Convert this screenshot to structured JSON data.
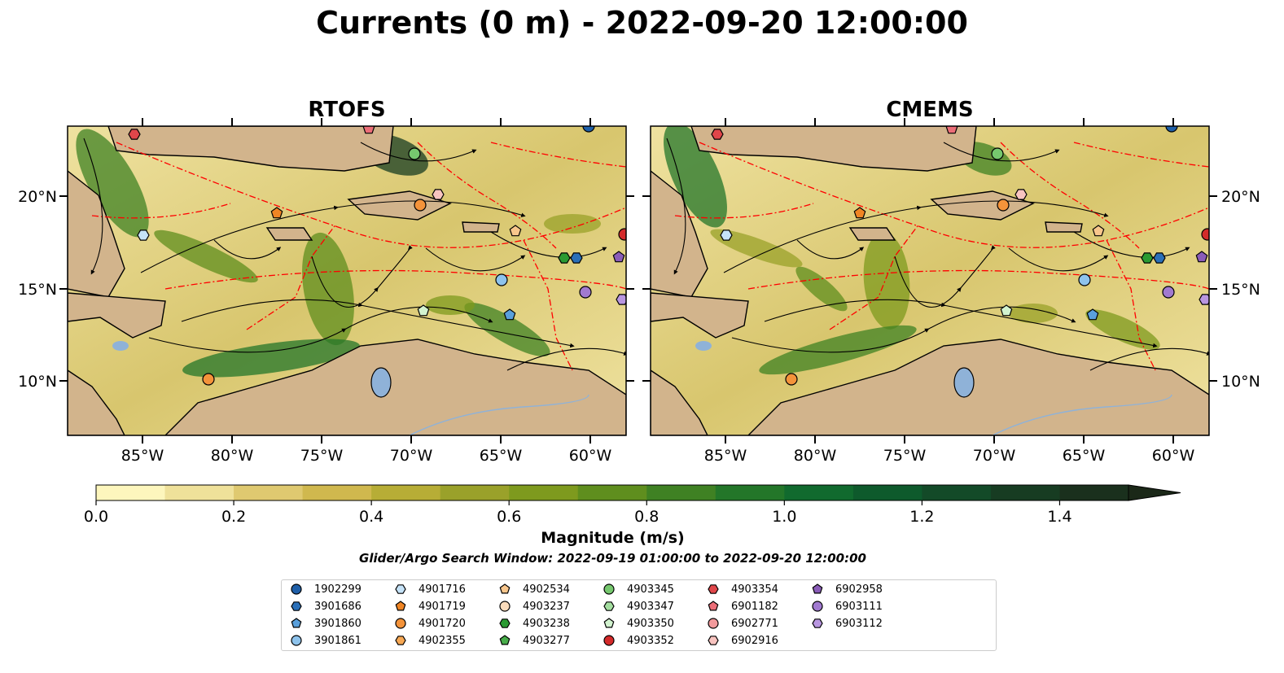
{
  "title": "Currents (0 m) - 2022-09-20 12:00:00",
  "panels": [
    {
      "title": "RTOFS"
    },
    {
      "title": "CMEMS"
    }
  ],
  "axes": {
    "lon_ticks": [
      "85°W",
      "80°W",
      "75°W",
      "70°W",
      "65°W",
      "60°W"
    ],
    "lat_ticks": [
      "20°N",
      "15°N",
      "10°N"
    ]
  },
  "colorbar": {
    "title": "Magnitude (m/s)",
    "ticks": [
      "0.0",
      "0.2",
      "0.4",
      "0.6",
      "0.8",
      "1.0",
      "1.2",
      "1.4"
    ],
    "range": [
      0.0,
      1.5
    ],
    "extend": "max",
    "colors": [
      "#fdf6bd",
      "#efe19a",
      "#dfc970",
      "#d0b84e",
      "#b7ad36",
      "#9aa12a",
      "#7e9a1e",
      "#5f8e1e",
      "#3f8123",
      "#237629",
      "#116a2e",
      "#0e5a2c",
      "#134a28",
      "#173c22",
      "#1a301d",
      "#1b2818"
    ]
  },
  "search_window": "Glider/Argo Search Window: 2022-09-19 01:00:00 to 2022-09-20 12:00:00",
  "legend": {
    "items": [
      {
        "id": "1902299",
        "marker": "circle",
        "color": "#1f5fa8"
      },
      {
        "id": "3901686",
        "marker": "hexagon",
        "color": "#2a6fb8"
      },
      {
        "id": "3901860",
        "marker": "pentagon",
        "color": "#5aa0dc"
      },
      {
        "id": "3901861",
        "marker": "circle",
        "color": "#8ec3ec"
      },
      {
        "id": "4901716",
        "marker": "hexagon",
        "color": "#c6e3f8"
      },
      {
        "id": "4901719",
        "marker": "pentagon",
        "color": "#f08524"
      },
      {
        "id": "4901720",
        "marker": "circle",
        "color": "#f4933a"
      },
      {
        "id": "4902355",
        "marker": "hexagon",
        "color": "#f7a854"
      },
      {
        "id": "4902534",
        "marker": "pentagon",
        "color": "#f8c68c"
      },
      {
        "id": "4903237",
        "marker": "circle",
        "color": "#fbdcbc"
      },
      {
        "id": "4903238",
        "marker": "hexagon",
        "color": "#2a9a32"
      },
      {
        "id": "4903277",
        "marker": "pentagon",
        "color": "#48ad4a"
      },
      {
        "id": "4903345",
        "marker": "circle",
        "color": "#76c86e"
      },
      {
        "id": "4903347",
        "marker": "hexagon",
        "color": "#a4dea0"
      },
      {
        "id": "4903350",
        "marker": "pentagon",
        "color": "#d2f3cf"
      },
      {
        "id": "4903352",
        "marker": "circle",
        "color": "#d42a2a"
      },
      {
        "id": "4903354",
        "marker": "hexagon",
        "color": "#e0464a"
      },
      {
        "id": "6901182",
        "marker": "pentagon",
        "color": "#ec6e78"
      },
      {
        "id": "6902771",
        "marker": "circle",
        "color": "#f29a9c"
      },
      {
        "id": "6902916",
        "marker": "hexagon",
        "color": "#f8c4c0"
      },
      {
        "id": "6902958",
        "marker": "pentagon",
        "color": "#8a5cb8"
      },
      {
        "id": "6903111",
        "marker": "circle",
        "color": "#a17ad0"
      },
      {
        "id": "6903112",
        "marker": "hexagon",
        "color": "#b896e0"
      }
    ]
  },
  "colors": {
    "land": "#d2b48c",
    "lakes": "#8fb2d8",
    "eez_lines": "#ff0000"
  }
}
